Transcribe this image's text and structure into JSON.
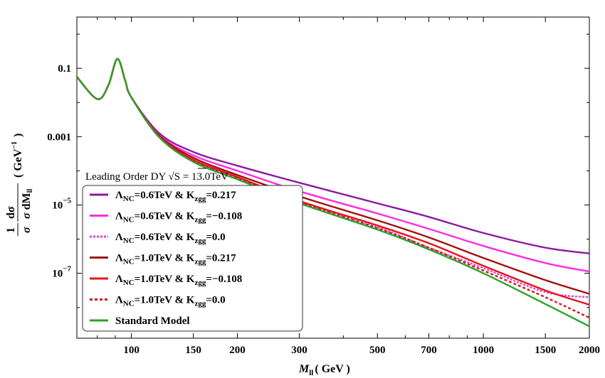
{
  "chart_data": {
    "type": "line",
    "x_scale": "log",
    "y_scale": "log",
    "xlim": [
      70,
      2000
    ],
    "ylim_log10": [
      -8.9,
      0.5
    ],
    "x_ticks": [
      100,
      150,
      200,
      300,
      500,
      700,
      1000,
      1500,
      2000
    ],
    "x_tick_labels": [
      "100",
      "150",
      "200",
      "300",
      "500",
      "700",
      "1000",
      "1500",
      "2000"
    ],
    "y_ticks_log10": [
      -1,
      -3,
      -5,
      -7
    ],
    "y_tick_labels": [
      {
        "base": "0.1",
        "exp": ""
      },
      {
        "base": "0.001",
        "exp": ""
      },
      {
        "base": "10",
        "exp": "−5"
      },
      {
        "base": "10",
        "exp": "−7"
      }
    ],
    "xlabel": {
      "var": "M",
      "sub": "ll",
      "rest": "( GeV )"
    },
    "ylabel": {
      "num": "1",
      "dsig": "dσ",
      "sig": "σ",
      "dm": "dM",
      "dm_sub": "ll",
      "unit": "( GeV",
      "unit_exp": "−1",
      "close": ")"
    },
    "annotation": {
      "text": "Leading Order DY",
      "sqrt": "√",
      "s": "S",
      "value": " = 13.0TeV"
    },
    "series": [
      {
        "name": "purple",
        "legend": {
          "lam": "Λ",
          "lsub": "NC",
          "lval": "=0.6TeV & K",
          "ksub": "zgg",
          "kval": "=0.217"
        },
        "color": "#8B1A9E",
        "dash": "",
        "curve": "c1",
        "points": [
          [
            70,
            -1.25
          ],
          [
            80,
            -1.9
          ],
          [
            86,
            -1.5
          ],
          [
            91.2,
            -0.72
          ],
          [
            96,
            -1.35
          ],
          [
            100,
            -1.85
          ],
          [
            120,
            -2.9
          ],
          [
            150,
            -3.45
          ],
          [
            200,
            -3.85
          ],
          [
            300,
            -4.35
          ],
          [
            500,
            -4.95
          ],
          [
            700,
            -5.35
          ],
          [
            1000,
            -5.82
          ],
          [
            1500,
            -6.25
          ],
          [
            2000,
            -6.42
          ]
        ]
      },
      {
        "name": "magenta",
        "legend": {
          "lam": "Λ",
          "lsub": "NC",
          "lval": "=0.6TeV & K",
          "ksub": "zgg",
          "kval": "=−0.108"
        },
        "color": "#FF2BE6",
        "dash": "",
        "curve": "c2",
        "points": [
          [
            70,
            -1.25
          ],
          [
            80,
            -1.9
          ],
          [
            86,
            -1.5
          ],
          [
            91.2,
            -0.72
          ],
          [
            96,
            -1.35
          ],
          [
            100,
            -1.85
          ],
          [
            120,
            -2.95
          ],
          [
            150,
            -3.55
          ],
          [
            200,
            -4.0
          ],
          [
            300,
            -4.6
          ],
          [
            500,
            -5.25
          ],
          [
            700,
            -5.7
          ],
          [
            1000,
            -6.2
          ],
          [
            1500,
            -6.7
          ],
          [
            2000,
            -6.95
          ]
        ]
      },
      {
        "name": "magenta-dashed",
        "legend": {
          "lam": "Λ",
          "lsub": "NC",
          "lval": "=0.6TeV & K",
          "ksub": "zgg",
          "kval": "=0.0"
        },
        "color": "#E040D8",
        "dash": "3,2",
        "curve": "c3",
        "points": [
          [
            70,
            -1.25
          ],
          [
            80,
            -1.9
          ],
          [
            86,
            -1.5
          ],
          [
            91.2,
            -0.72
          ],
          [
            96,
            -1.35
          ],
          [
            100,
            -1.85
          ],
          [
            120,
            -3.0
          ],
          [
            150,
            -3.7
          ],
          [
            200,
            -4.2
          ],
          [
            300,
            -4.9
          ],
          [
            500,
            -5.65
          ],
          [
            700,
            -6.25
          ],
          [
            1000,
            -6.85
          ],
          [
            1500,
            -7.55
          ],
          [
            2000,
            -7.7
          ]
        ]
      },
      {
        "name": "dark-red",
        "legend": {
          "lam": "Λ",
          "lsub": "NC",
          "lval": "=1.0TeV & K",
          "ksub": "zgg",
          "kval": "=0.217"
        },
        "color": "#A01010",
        "dash": "",
        "curve": "c4",
        "points": [
          [
            70,
            -1.25
          ],
          [
            80,
            -1.9
          ],
          [
            86,
            -1.5
          ],
          [
            91.2,
            -0.72
          ],
          [
            96,
            -1.35
          ],
          [
            100,
            -1.85
          ],
          [
            120,
            -2.97
          ],
          [
            150,
            -3.62
          ],
          [
            200,
            -4.12
          ],
          [
            300,
            -4.75
          ],
          [
            500,
            -5.45
          ],
          [
            700,
            -5.95
          ],
          [
            1000,
            -6.55
          ],
          [
            1500,
            -7.2
          ],
          [
            2000,
            -7.6
          ]
        ]
      },
      {
        "name": "red",
        "legend": {
          "lam": "Λ",
          "lsub": "NC",
          "lval": "=1.0TeV & K",
          "ksub": "zgg",
          "kval": "=−0.108"
        },
        "color": "#E8141A",
        "dash": "",
        "curve": "c5",
        "points": [
          [
            70,
            -1.25
          ],
          [
            80,
            -1.9
          ],
          [
            86,
            -1.5
          ],
          [
            91.2,
            -0.72
          ],
          [
            96,
            -1.35
          ],
          [
            100,
            -1.85
          ],
          [
            120,
            -3.0
          ],
          [
            150,
            -3.68
          ],
          [
            200,
            -4.18
          ],
          [
            300,
            -4.88
          ],
          [
            500,
            -5.6
          ],
          [
            700,
            -6.12
          ],
          [
            1000,
            -6.78
          ],
          [
            1500,
            -7.5
          ],
          [
            2000,
            -7.92
          ]
        ]
      },
      {
        "name": "red-dashed",
        "legend": {
          "lam": "Λ",
          "lsub": "NC",
          "lval": "=1.0TeV & K",
          "ksub": "zgg",
          "kval": "=0.0"
        },
        "color": "#D01818",
        "dash": "4,3",
        "curve": "c6",
        "points": [
          [
            70,
            -1.25
          ],
          [
            80,
            -1.9
          ],
          [
            86,
            -1.5
          ],
          [
            91.2,
            -0.72
          ],
          [
            96,
            -1.35
          ],
          [
            100,
            -1.85
          ],
          [
            120,
            -3.02
          ],
          [
            150,
            -3.72
          ],
          [
            200,
            -4.22
          ],
          [
            300,
            -4.92
          ],
          [
            500,
            -5.68
          ],
          [
            700,
            -6.25
          ],
          [
            1000,
            -6.92
          ],
          [
            1500,
            -7.7
          ],
          [
            2000,
            -8.3
          ]
        ]
      },
      {
        "name": "standard-model",
        "legend": {
          "lam": "",
          "lsub": "",
          "lval": "Standard Model",
          "ksub": "",
          "kval": ""
        },
        "color": "#2FA02A",
        "dash": "",
        "curve": "c7",
        "points": [
          [
            70,
            -1.25
          ],
          [
            80,
            -1.9
          ],
          [
            86,
            -1.5
          ],
          [
            91.2,
            -0.72
          ],
          [
            96,
            -1.35
          ],
          [
            100,
            -1.85
          ],
          [
            120,
            -3.02
          ],
          [
            150,
            -3.74
          ],
          [
            200,
            -4.25
          ],
          [
            300,
            -4.95
          ],
          [
            500,
            -5.72
          ],
          [
            700,
            -6.3
          ],
          [
            1000,
            -7.0
          ],
          [
            1500,
            -7.9
          ],
          [
            2000,
            -8.55
          ]
        ]
      }
    ]
  }
}
